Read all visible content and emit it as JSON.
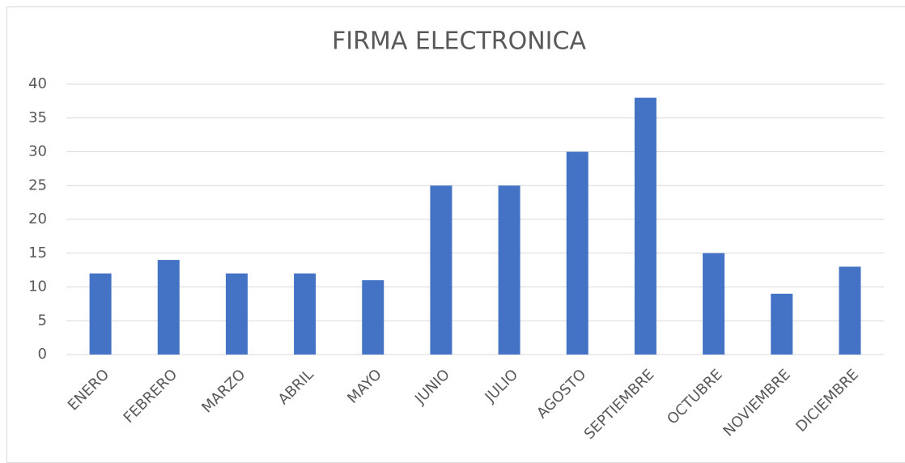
{
  "chart_data": {
    "type": "bar",
    "title": "FIRMA ELECTRONICA",
    "categories": [
      "ENERO",
      "FEBRERO",
      "MARZO",
      "ABRIL",
      "MAYO",
      "JUNIO",
      "JULIO",
      "AGOSTO",
      "SEPTIEMBRE",
      "OCTUBRE",
      "NOVIEMBRE",
      "DICIEMBRE"
    ],
    "values": [
      12,
      14,
      12,
      12,
      11,
      25,
      25,
      30,
      38,
      15,
      9,
      13
    ],
    "color": "#4472c4",
    "ylim": [
      0,
      40
    ],
    "yticks": [
      0,
      5,
      10,
      15,
      20,
      25,
      30,
      35,
      40
    ],
    "grid": true
  }
}
